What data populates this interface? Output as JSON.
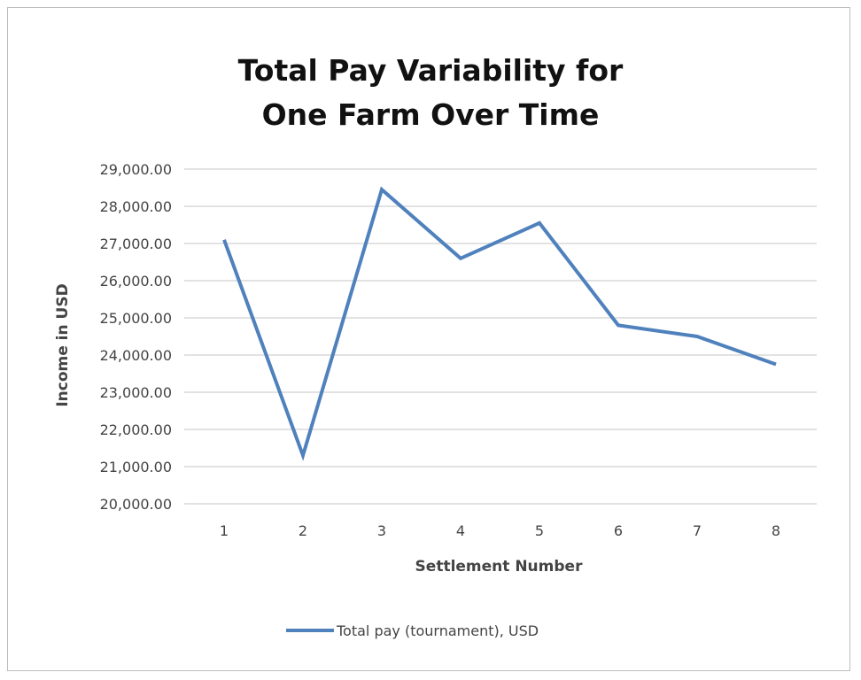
{
  "chart_data": {
    "type": "line",
    "title_lines": [
      "Total Pay Variability for",
      "One Farm Over Time"
    ],
    "xlabel": "Settlement Number",
    "ylabel": "Income in USD",
    "categories": [
      "1",
      "2",
      "3",
      "4",
      "5",
      "6",
      "7",
      "8"
    ],
    "ylim": [
      20000,
      29000
    ],
    "yticks": [
      20000,
      21000,
      22000,
      23000,
      24000,
      25000,
      26000,
      27000,
      28000,
      29000
    ],
    "ytick_labels": [
      "20,000.00",
      "21,000.00",
      "22,000.00",
      "23,000.00",
      "24,000.00",
      "25,000.00",
      "26,000.00",
      "27,000.00",
      "28,000.00",
      "29,000.00"
    ],
    "grid": true,
    "legend_position": "bottom",
    "series": [
      {
        "name": "Total pay (tournament), USD",
        "color": "#4f81bd",
        "values": [
          27100,
          21300,
          28450,
          26600,
          27550,
          24800,
          24500,
          23750
        ]
      }
    ]
  }
}
